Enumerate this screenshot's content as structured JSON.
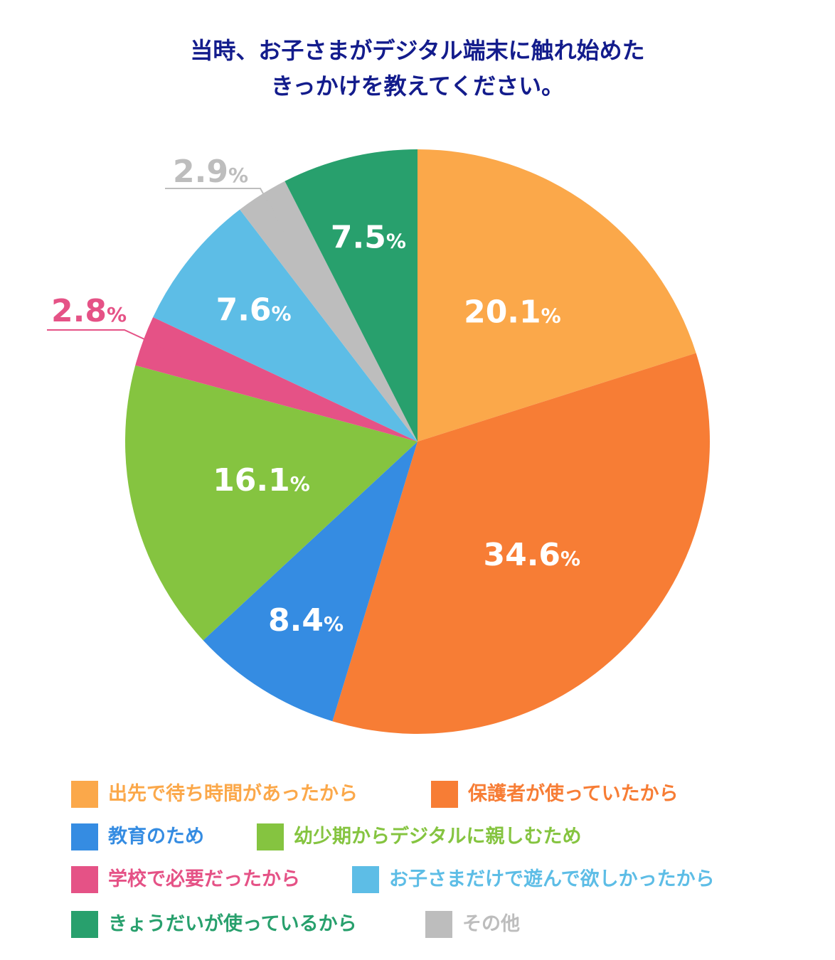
{
  "title": {
    "line1": "当時、お子さまがデジタル端末に触れ始めた",
    "line2": "きっかけを教えてください。"
  },
  "chart_data": {
    "type": "pie",
    "title": "当時、お子さまがデジタル端末に触れ始めた きっかけを教えてください。",
    "start": "12 o'clock, clockwise",
    "slices": [
      {
        "label": "出先で待ち時間があったから",
        "value": 20.1,
        "display": "20.1",
        "color": "#fba84a"
      },
      {
        "label": "保護者が使っていたから",
        "value": 34.6,
        "display": "34.6",
        "color": "#f77d35"
      },
      {
        "label": "教育のため",
        "value": 8.4,
        "display": "8.4",
        "color": "#358ce2"
      },
      {
        "label": "幼少期からデジタルに親しむため",
        "value": 16.1,
        "display": "16.1",
        "color": "#85c440"
      },
      {
        "label": "学校で必要だったから",
        "value": 2.8,
        "display": "2.8",
        "color": "#e55286"
      },
      {
        "label": "お子さまだけで遊んで欲しかったから",
        "value": 7.6,
        "display": "7.6",
        "color": "#5dbde6"
      },
      {
        "label": "その他",
        "value": 2.9,
        "display": "2.9",
        "color": "#bdbdbd"
      },
      {
        "label": "きょうだいが使っているから",
        "value": 7.5,
        "display": "7.5",
        "color": "#28a06d"
      }
    ],
    "unit": "%"
  },
  "legend": [
    {
      "label": "出先で待ち時間があったから",
      "color": "#fba84a"
    },
    {
      "label": "保護者が使っていたから",
      "color": "#f77d35"
    },
    {
      "label": "教育のため",
      "color": "#358ce2"
    },
    {
      "label": "幼少期からデジタルに親しむため",
      "color": "#85c440"
    },
    {
      "label": "学校で必要だったから",
      "color": "#e55286"
    },
    {
      "label": "お子さまだけで遊んで欲しかったから",
      "color": "#5dbde6"
    },
    {
      "label": "きょうだいが使っているから",
      "color": "#28a06d"
    },
    {
      "label": "その他",
      "color": "#bdbdbd"
    }
  ]
}
